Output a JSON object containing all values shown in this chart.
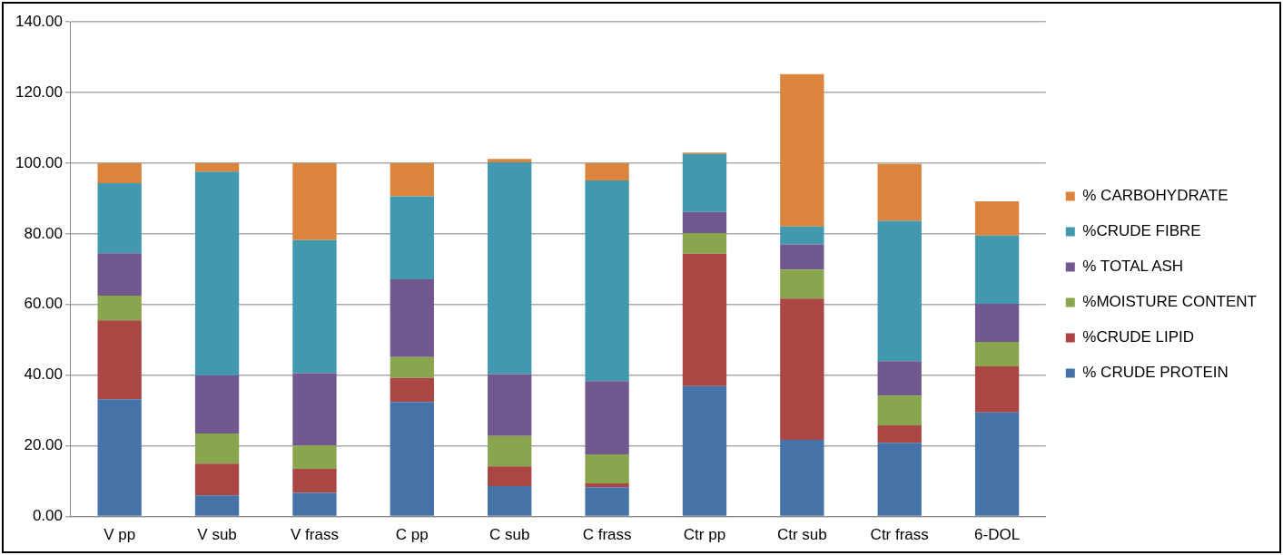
{
  "chart_data": {
    "type": "bar",
    "stacked": true,
    "categories": [
      "V pp",
      "V sub",
      "V frass",
      "C pp",
      "C sub",
      "C frass",
      "Ctr pp",
      "Ctr sub",
      "Ctr frass",
      "6-DOL"
    ],
    "series": [
      {
        "name": "% CRUDE PROTEIN",
        "color": "#4572a7",
        "values": [
          33.2,
          6.0,
          6.7,
          32.4,
          8.6,
          8.3,
          36.9,
          21.7,
          20.9,
          29.5
        ]
      },
      {
        "name": "%CRUDE LIPID",
        "color": "#aa4643",
        "values": [
          22.3,
          9.0,
          6.8,
          6.8,
          5.6,
          1.1,
          37.5,
          40.0,
          4.9,
          13.0
        ]
      },
      {
        "name": "%MOISTURE CONTENT",
        "color": "#89a54e",
        "values": [
          7.0,
          8.5,
          6.6,
          5.9,
          8.6,
          8.2,
          5.8,
          8.2,
          8.4,
          6.9
        ]
      },
      {
        "name": "% TOTAL ASH",
        "color": "#71588f",
        "values": [
          12.0,
          16.4,
          20.5,
          22.0,
          17.5,
          20.7,
          6.0,
          7.1,
          9.8,
          10.8
        ]
      },
      {
        "name": "%CRUDE FIBRE",
        "color": "#4198af",
        "values": [
          19.8,
          57.7,
          37.6,
          23.5,
          59.9,
          56.8,
          16.4,
          5.1,
          39.7,
          19.3
        ]
      },
      {
        "name": "% CARBOHYDRATE",
        "color": "#db843d",
        "values": [
          5.7,
          2.4,
          21.8,
          9.4,
          1.0,
          4.9,
          0.4,
          43.1,
          16.1,
          9.7
        ]
      }
    ],
    "ylim": [
      0,
      140
    ],
    "yticks": [
      {
        "value": 0,
        "label": "0.00"
      },
      {
        "value": 20,
        "label": "20.00"
      },
      {
        "value": 40,
        "label": "40.00"
      },
      {
        "value": 60,
        "label": "60.00"
      },
      {
        "value": 80,
        "label": "80.00"
      },
      {
        "value": 100,
        "label": "100.00"
      },
      {
        "value": 120,
        "label": "120.00"
      },
      {
        "value": 140,
        "label": "140.00"
      }
    ],
    "grid": "y",
    "legend": "right"
  }
}
